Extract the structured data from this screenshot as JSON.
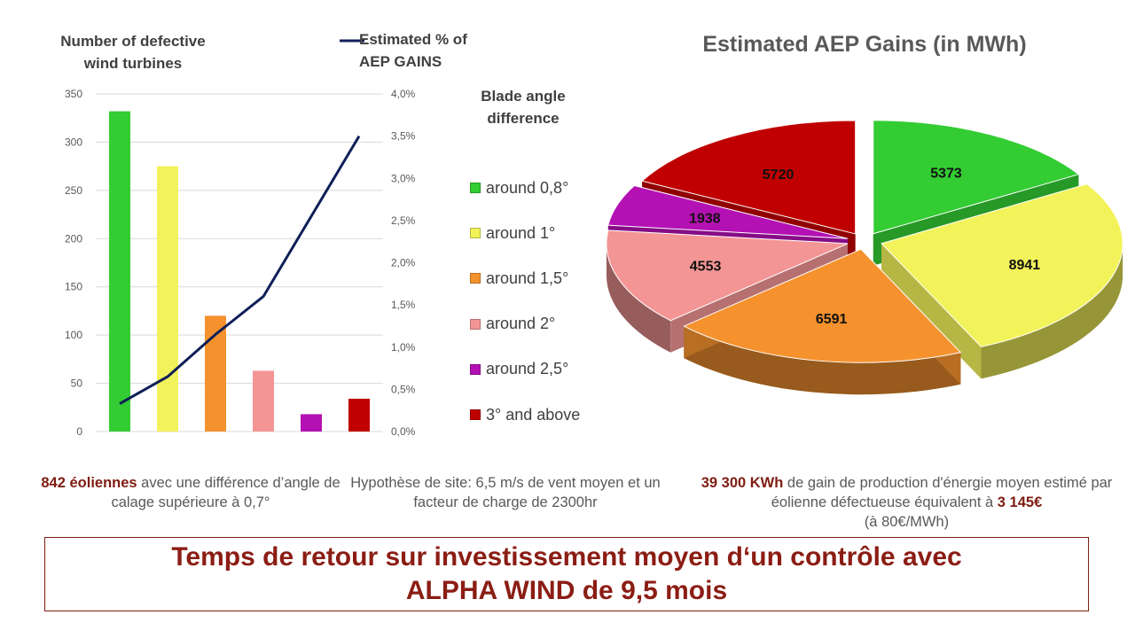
{
  "combo_chart": {
    "left_title": "Number of defective wind turbines",
    "line_legend": "Estimated % of AEP GAINS"
  },
  "legend": {
    "title": "Blade angle difference",
    "items": [
      {
        "label": "around 0,8°",
        "color": "#33cc33"
      },
      {
        "label": "around 1°",
        "color": "#f2f25a"
      },
      {
        "label": "around 1,5°",
        "color": "#f5922e"
      },
      {
        "label": "around 2°",
        "color": "#f49595"
      },
      {
        "label": "around 2,5°",
        "color": "#b311b3"
      },
      {
        "label": "3° and above",
        "color": "#c00000"
      }
    ]
  },
  "pie_title": "Estimated AEP Gains (in MWh)",
  "notes": {
    "left": {
      "highlight": "842 éoliennes",
      "rest": " avec une différence d’angle de calage supérieure à 0,7°"
    },
    "center": "Hypothèse de site: 6,5 m/s de vent moyen et un facteur de charge de 2300hr",
    "right": {
      "highlight1": "39 300 KWh",
      "mid": " de gain de production d'énergie moyen estimé par éolienne défectueuse équivalent à ",
      "highlight2": "3 145€",
      "tail": "(à 80€/MWh)"
    }
  },
  "payback": {
    "line1": "Temps de retour sur investissement moyen d‘un contrôle avec",
    "line2": "ALPHA WIND de 9,5 mois"
  },
  "chart_data": [
    {
      "type": "bar",
      "categories": [
        "around 0,8°",
        "around 1°",
        "around 1,5°",
        "around 2°",
        "around 2,5°",
        "3° and above"
      ],
      "series": [
        {
          "name": "Number of defective wind turbines",
          "type": "bar",
          "axis": "left",
          "values": [
            332,
            275,
            120,
            63,
            18,
            34
          ],
          "colors": [
            "#33cc33",
            "#f2f25a",
            "#f5922e",
            "#f49595",
            "#b311b3",
            "#c00000"
          ]
        },
        {
          "name": "Estimated % of AEP GAINS",
          "type": "line",
          "axis": "right",
          "values": [
            0.33,
            0.65,
            1.15,
            1.6,
            2.55,
            3.5
          ],
          "color": "#0f1f57"
        }
      ],
      "y_left": {
        "min": 0,
        "max": 350,
        "ticks": [
          "0",
          "50",
          "100",
          "150",
          "200",
          "250",
          "300",
          "350"
        ]
      },
      "y_right": {
        "min": 0,
        "max": 4.0,
        "ticks": [
          "0,0%",
          "0,5%",
          "1,0%",
          "1,5%",
          "2,0%",
          "2,5%",
          "3,0%",
          "3,5%",
          "4,0%"
        ]
      },
      "grid": true
    },
    {
      "type": "pie",
      "title": "Estimated AEP Gains (in MWh)",
      "labels": [
        "around 0,8°",
        "around 1°",
        "around 1,5°",
        "around 2°",
        "around 2,5°",
        "3° and above"
      ],
      "values": [
        5373,
        8941,
        6591,
        4553,
        1938,
        5720
      ],
      "colors": [
        "#33cc33",
        "#f2f25a",
        "#f5922e",
        "#f49595",
        "#b311b3",
        "#c00000"
      ],
      "exploded": true
    }
  ]
}
